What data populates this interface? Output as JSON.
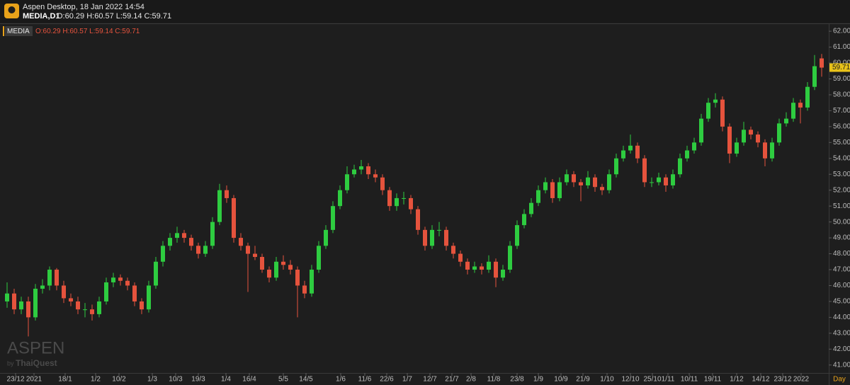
{
  "header": {
    "app_title": "Aspen Desktop, 18 Jan 2022 14:54",
    "symbol": "MEDIA,D1",
    "ohlc_text": "O:60.29 H:60.57 L:59.14 C:59.71"
  },
  "legend": {
    "symbol": "MEDIA",
    "ohlc_text": "O:60.29 H:60.57 L:59.14 C:59.71"
  },
  "watermark": {
    "brand": "ASPEN",
    "by": "by",
    "maker": "ThaiQuest"
  },
  "chart_data": {
    "type": "candlestick",
    "x_label": "Day",
    "up_color": "#2ecc40",
    "down_color": "#e5533d",
    "ylim": [
      40.5,
      62.45
    ],
    "yticks": [
      {
        "value": 41,
        "label": "41.00"
      },
      {
        "value": 42,
        "label": "42.00"
      },
      {
        "value": 43,
        "label": "43.00"
      },
      {
        "value": 44,
        "label": "44.00"
      },
      {
        "value": 45,
        "label": "45.00"
      },
      {
        "value": 46,
        "label": "46.00"
      },
      {
        "value": 47,
        "label": "47.00"
      },
      {
        "value": 48,
        "label": "48.00"
      },
      {
        "value": 49,
        "label": "49.00"
      },
      {
        "value": 50,
        "label": "50.00"
      },
      {
        "value": 51,
        "label": "51.00"
      },
      {
        "value": 52,
        "label": "52.00"
      },
      {
        "value": 53,
        "label": "53.00"
      },
      {
        "value": 54,
        "label": "54.00"
      },
      {
        "value": 55,
        "label": "55.00"
      },
      {
        "value": 56,
        "label": "56.00"
      },
      {
        "value": 57,
        "label": "57.00"
      },
      {
        "value": 58,
        "label": "58.00"
      },
      {
        "value": 59,
        "label": "59.00"
      },
      {
        "value": 60,
        "label": "60.00"
      },
      {
        "value": 61,
        "label": "61.00"
      },
      {
        "value": 62,
        "label": "62.00"
      }
    ],
    "xticks": [
      {
        "value": 1.2,
        "label": "23/12"
      },
      {
        "value": 3.8,
        "label": "2021"
      },
      {
        "value": 8.2,
        "label": "18/1"
      },
      {
        "value": 12.5,
        "label": "1/2"
      },
      {
        "value": 15.8,
        "label": "10/2"
      },
      {
        "value": 20.5,
        "label": "1/3"
      },
      {
        "value": 23.8,
        "label": "10/3"
      },
      {
        "value": 27,
        "label": "19/3"
      },
      {
        "value": 30.9,
        "label": "1/4"
      },
      {
        "value": 34.2,
        "label": "16/4"
      },
      {
        "value": 39,
        "label": "5/5"
      },
      {
        "value": 42.2,
        "label": "14/5"
      },
      {
        "value": 47.1,
        "label": "1/6"
      },
      {
        "value": 50.5,
        "label": "11/6"
      },
      {
        "value": 53.6,
        "label": "22/6"
      },
      {
        "value": 56.5,
        "label": "1/7"
      },
      {
        "value": 59.7,
        "label": "12/7"
      },
      {
        "value": 62.8,
        "label": "21/7"
      },
      {
        "value": 65.5,
        "label": "2/8"
      },
      {
        "value": 68.7,
        "label": "11/8"
      },
      {
        "value": 72,
        "label": "23/8"
      },
      {
        "value": 75,
        "label": "1/9"
      },
      {
        "value": 78.2,
        "label": "10/9"
      },
      {
        "value": 81.3,
        "label": "21/9"
      },
      {
        "value": 84.7,
        "label": "1/10"
      },
      {
        "value": 88,
        "label": "12/10"
      },
      {
        "value": 91.1,
        "label": "25/10"
      },
      {
        "value": 93.3,
        "label": "1/11"
      },
      {
        "value": 96.3,
        "label": "10/11"
      },
      {
        "value": 99.6,
        "label": "19/11"
      },
      {
        "value": 103,
        "label": "1/12"
      },
      {
        "value": 106.4,
        "label": "14/12"
      },
      {
        "value": 109.5,
        "label": "23/12"
      },
      {
        "value": 112.1,
        "label": "2022"
      }
    ],
    "candles": [
      [
        45.0,
        46.2,
        44.6,
        45.5
      ],
      [
        45.5,
        45.8,
        44.2,
        44.5
      ],
      [
        44.5,
        45.3,
        44.2,
        45.0
      ],
      [
        45.0,
        45.3,
        42.8,
        44.0
      ],
      [
        44.0,
        46.1,
        43.8,
        45.8
      ],
      [
        45.8,
        46.4,
        45.5,
        46.0
      ],
      [
        46.0,
        47.2,
        45.7,
        47.0
      ],
      [
        47.0,
        47.1,
        45.7,
        46.0
      ],
      [
        46.0,
        46.3,
        44.9,
        45.2
      ],
      [
        45.2,
        45.5,
        44.7,
        45.0
      ],
      [
        45.0,
        45.3,
        44.2,
        44.5
      ],
      [
        44.5,
        44.9,
        44.0,
        44.5
      ],
      [
        44.5,
        44.8,
        43.8,
        44.2
      ],
      [
        44.2,
        45.3,
        44.0,
        45.0
      ],
      [
        45.0,
        46.5,
        44.8,
        46.2
      ],
      [
        46.2,
        46.8,
        45.9,
        46.5
      ],
      [
        46.5,
        46.7,
        46.0,
        46.3
      ],
      [
        46.3,
        46.5,
        45.7,
        46.0
      ],
      [
        46.0,
        46.2,
        44.7,
        45.0
      ],
      [
        45.0,
        45.2,
        44.2,
        44.5
      ],
      [
        44.5,
        46.3,
        44.3,
        46.0
      ],
      [
        46.0,
        47.8,
        45.8,
        47.5
      ],
      [
        47.5,
        48.8,
        47.2,
        48.5
      ],
      [
        48.5,
        49.3,
        48.2,
        49.0
      ],
      [
        49.0,
        49.7,
        48.7,
        49.3
      ],
      [
        49.3,
        49.5,
        48.7,
        49.0
      ],
      [
        49.0,
        49.2,
        48.2,
        48.5
      ],
      [
        48.5,
        48.7,
        47.7,
        48.0
      ],
      [
        48.0,
        48.8,
        47.8,
        48.5
      ],
      [
        48.5,
        50.3,
        48.3,
        50.0
      ],
      [
        50.0,
        52.4,
        49.8,
        52.0
      ],
      [
        52.0,
        52.3,
        51.2,
        51.5
      ],
      [
        51.5,
        51.7,
        48.7,
        49.0
      ],
      [
        49.0,
        49.3,
        48.2,
        48.5
      ],
      [
        48.5,
        48.7,
        45.6,
        48.0
      ],
      [
        48.0,
        48.5,
        47.6,
        47.8
      ],
      [
        47.8,
        48.0,
        46.8,
        47.0
      ],
      [
        47.0,
        47.2,
        46.2,
        46.5
      ],
      [
        46.5,
        47.8,
        46.3,
        47.5
      ],
      [
        47.5,
        47.9,
        47.0,
        47.3
      ],
      [
        47.3,
        47.6,
        46.7,
        47.0
      ],
      [
        47.0,
        47.2,
        44.0,
        46.0
      ],
      [
        46.0,
        46.3,
        45.2,
        45.5
      ],
      [
        45.5,
        47.3,
        45.3,
        47.0
      ],
      [
        47.0,
        48.8,
        46.8,
        48.5
      ],
      [
        48.5,
        49.8,
        48.3,
        49.5
      ],
      [
        49.5,
        51.3,
        49.3,
        51.0
      ],
      [
        51.0,
        52.3,
        50.8,
        52.0
      ],
      [
        52.0,
        53.5,
        51.8,
        53.0
      ],
      [
        53.0,
        53.6,
        52.8,
        53.3
      ],
      [
        53.3,
        53.9,
        53.0,
        53.5
      ],
      [
        53.5,
        53.7,
        52.7,
        53.0
      ],
      [
        53.0,
        53.3,
        52.5,
        52.8
      ],
      [
        52.8,
        53.0,
        51.7,
        52.0
      ],
      [
        52.0,
        52.2,
        50.7,
        51.0
      ],
      [
        51.0,
        51.8,
        50.7,
        51.5
      ],
      [
        51.5,
        51.9,
        51.1,
        51.5
      ],
      [
        51.5,
        51.7,
        50.5,
        50.8
      ],
      [
        50.8,
        51.0,
        49.2,
        49.5
      ],
      [
        49.5,
        49.7,
        48.2,
        48.5
      ],
      [
        48.5,
        49.8,
        48.3,
        49.5
      ],
      [
        49.5,
        50.0,
        49.1,
        49.5
      ],
      [
        49.5,
        49.7,
        48.2,
        48.5
      ],
      [
        48.5,
        48.7,
        47.7,
        48.0
      ],
      [
        48.0,
        48.2,
        47.2,
        47.5
      ],
      [
        47.5,
        47.7,
        46.7,
        47.0
      ],
      [
        47.0,
        47.5,
        46.8,
        47.2
      ],
      [
        47.2,
        47.4,
        46.7,
        47.0
      ],
      [
        47.0,
        47.9,
        46.8,
        47.5
      ],
      [
        47.5,
        47.7,
        45.9,
        46.5
      ],
      [
        46.5,
        47.3,
        46.3,
        47.0
      ],
      [
        47.0,
        48.8,
        46.8,
        48.5
      ],
      [
        48.5,
        50.1,
        48.3,
        49.8
      ],
      [
        49.8,
        50.8,
        49.6,
        50.5
      ],
      [
        50.5,
        51.5,
        50.3,
        51.2
      ],
      [
        51.2,
        52.3,
        51.0,
        52.0
      ],
      [
        52.0,
        52.8,
        51.8,
        52.5
      ],
      [
        52.5,
        52.7,
        51.2,
        51.5
      ],
      [
        51.5,
        52.8,
        51.3,
        52.5
      ],
      [
        52.5,
        53.3,
        52.3,
        53.0
      ],
      [
        53.0,
        53.2,
        52.2,
        52.5
      ],
      [
        52.5,
        52.7,
        51.3,
        52.3
      ],
      [
        52.3,
        53.2,
        52.1,
        52.8
      ],
      [
        52.8,
        53.0,
        51.9,
        52.2
      ],
      [
        52.2,
        52.4,
        51.7,
        52.0
      ],
      [
        52.0,
        53.3,
        51.8,
        53.0
      ],
      [
        53.0,
        54.3,
        52.8,
        54.0
      ],
      [
        54.0,
        54.8,
        53.8,
        54.5
      ],
      [
        54.5,
        55.5,
        54.3,
        54.8
      ],
      [
        54.8,
        55.0,
        53.7,
        54.0
      ],
      [
        54.0,
        54.2,
        52.2,
        52.5
      ],
      [
        52.5,
        52.8,
        52.2,
        52.5
      ],
      [
        52.5,
        53.1,
        52.3,
        52.8
      ],
      [
        52.8,
        53.0,
        51.9,
        52.3
      ],
      [
        52.3,
        53.3,
        52.1,
        53.0
      ],
      [
        53.0,
        54.3,
        52.8,
        54.0
      ],
      [
        54.0,
        54.8,
        53.8,
        54.5
      ],
      [
        54.5,
        55.3,
        54.3,
        55.0
      ],
      [
        55.0,
        56.8,
        54.8,
        56.5
      ],
      [
        56.5,
        57.8,
        56.3,
        57.5
      ],
      [
        57.5,
        58.1,
        57.2,
        57.7
      ],
      [
        57.7,
        57.9,
        55.7,
        56.0
      ],
      [
        56.0,
        56.2,
        53.7,
        54.3
      ],
      [
        54.3,
        55.3,
        54.1,
        55.0
      ],
      [
        55.0,
        56.3,
        54.8,
        55.8
      ],
      [
        55.8,
        56.0,
        55.2,
        55.5
      ],
      [
        55.5,
        55.7,
        54.7,
        55.0
      ],
      [
        55.0,
        55.2,
        53.5,
        54.0
      ],
      [
        54.0,
        55.3,
        53.8,
        55.0
      ],
      [
        55.0,
        56.5,
        54.8,
        56.2
      ],
      [
        56.2,
        56.9,
        56.0,
        56.5
      ],
      [
        56.5,
        57.8,
        56.3,
        57.5
      ],
      [
        57.5,
        57.7,
        56.2,
        57.2
      ],
      [
        57.2,
        58.8,
        57.0,
        58.5
      ],
      [
        58.5,
        60.5,
        58.3,
        59.8
      ],
      [
        60.29,
        60.57,
        59.14,
        59.71
      ]
    ]
  }
}
